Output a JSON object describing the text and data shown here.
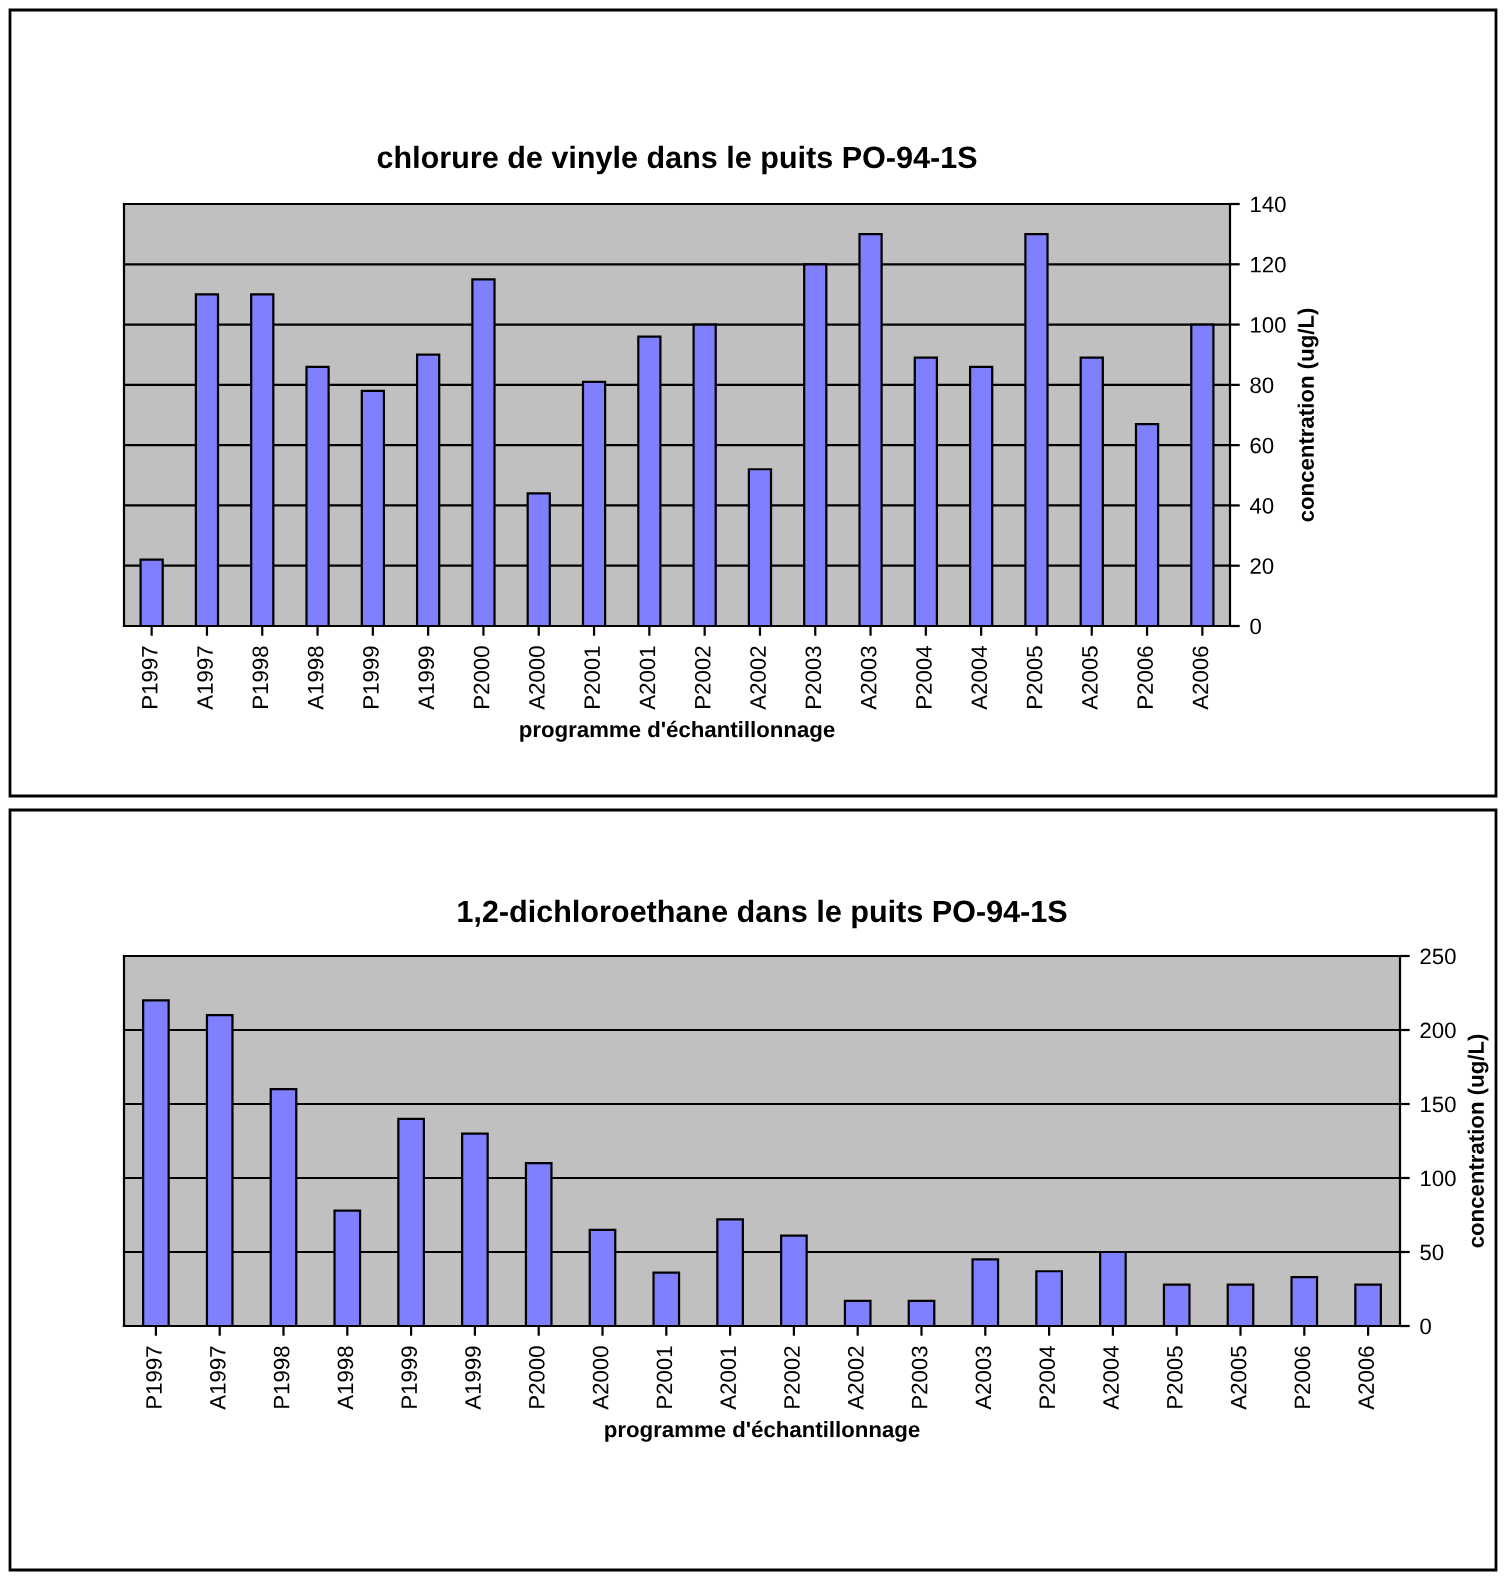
{
  "chart_data": [
    {
      "type": "bar",
      "title": "chlorure de vinyle dans le puits PO-94-1S",
      "xlabel": "programme d'échantillonnage",
      "ylabel": "concentration (ug/L)",
      "categories": [
        "P1997",
        "A1997",
        "P1998",
        "A1998",
        "P1999",
        "A1999",
        "P2000",
        "A2000",
        "P2001",
        "A2001",
        "P2002",
        "A2002",
        "P2003",
        "A2003",
        "P2004",
        "A2004",
        "P2005",
        "A2005",
        "P2006",
        "A2006"
      ],
      "values": [
        22,
        110,
        110,
        86,
        78,
        90,
        115,
        44,
        81,
        96,
        100,
        52,
        120,
        130,
        89,
        86,
        130,
        89,
        67,
        100
      ],
      "color": "#8080ff",
      "ylim": [
        0,
        140
      ],
      "yticks": [
        0,
        20,
        40,
        60,
        80,
        100,
        120,
        140
      ],
      "grid": "y",
      "legend": false
    },
    {
      "type": "bar",
      "title": "1,2-dichloroethane dans le puits PO-94-1S",
      "xlabel": "programme d'échantillonnage",
      "ylabel": "concentration (ug/L)",
      "categories": [
        "P1997",
        "A1997",
        "P1998",
        "A1998",
        "P1999",
        "A1999",
        "P2000",
        "A2000",
        "P2001",
        "A2001",
        "P2002",
        "A2002",
        "P2003",
        "A2003",
        "P2004",
        "A2004",
        "P2005",
        "A2005",
        "P2006",
        "A2006"
      ],
      "values": [
        220,
        210,
        160,
        78,
        140,
        130,
        110,
        65,
        36,
        72,
        61,
        17,
        17,
        45,
        37,
        50,
        28,
        28,
        33,
        28
      ],
      "color": "#8080ff",
      "ylim": [
        0,
        250
      ],
      "yticks": [
        0,
        50,
        100,
        150,
        200,
        250
      ],
      "grid": "y",
      "legend": false
    }
  ]
}
